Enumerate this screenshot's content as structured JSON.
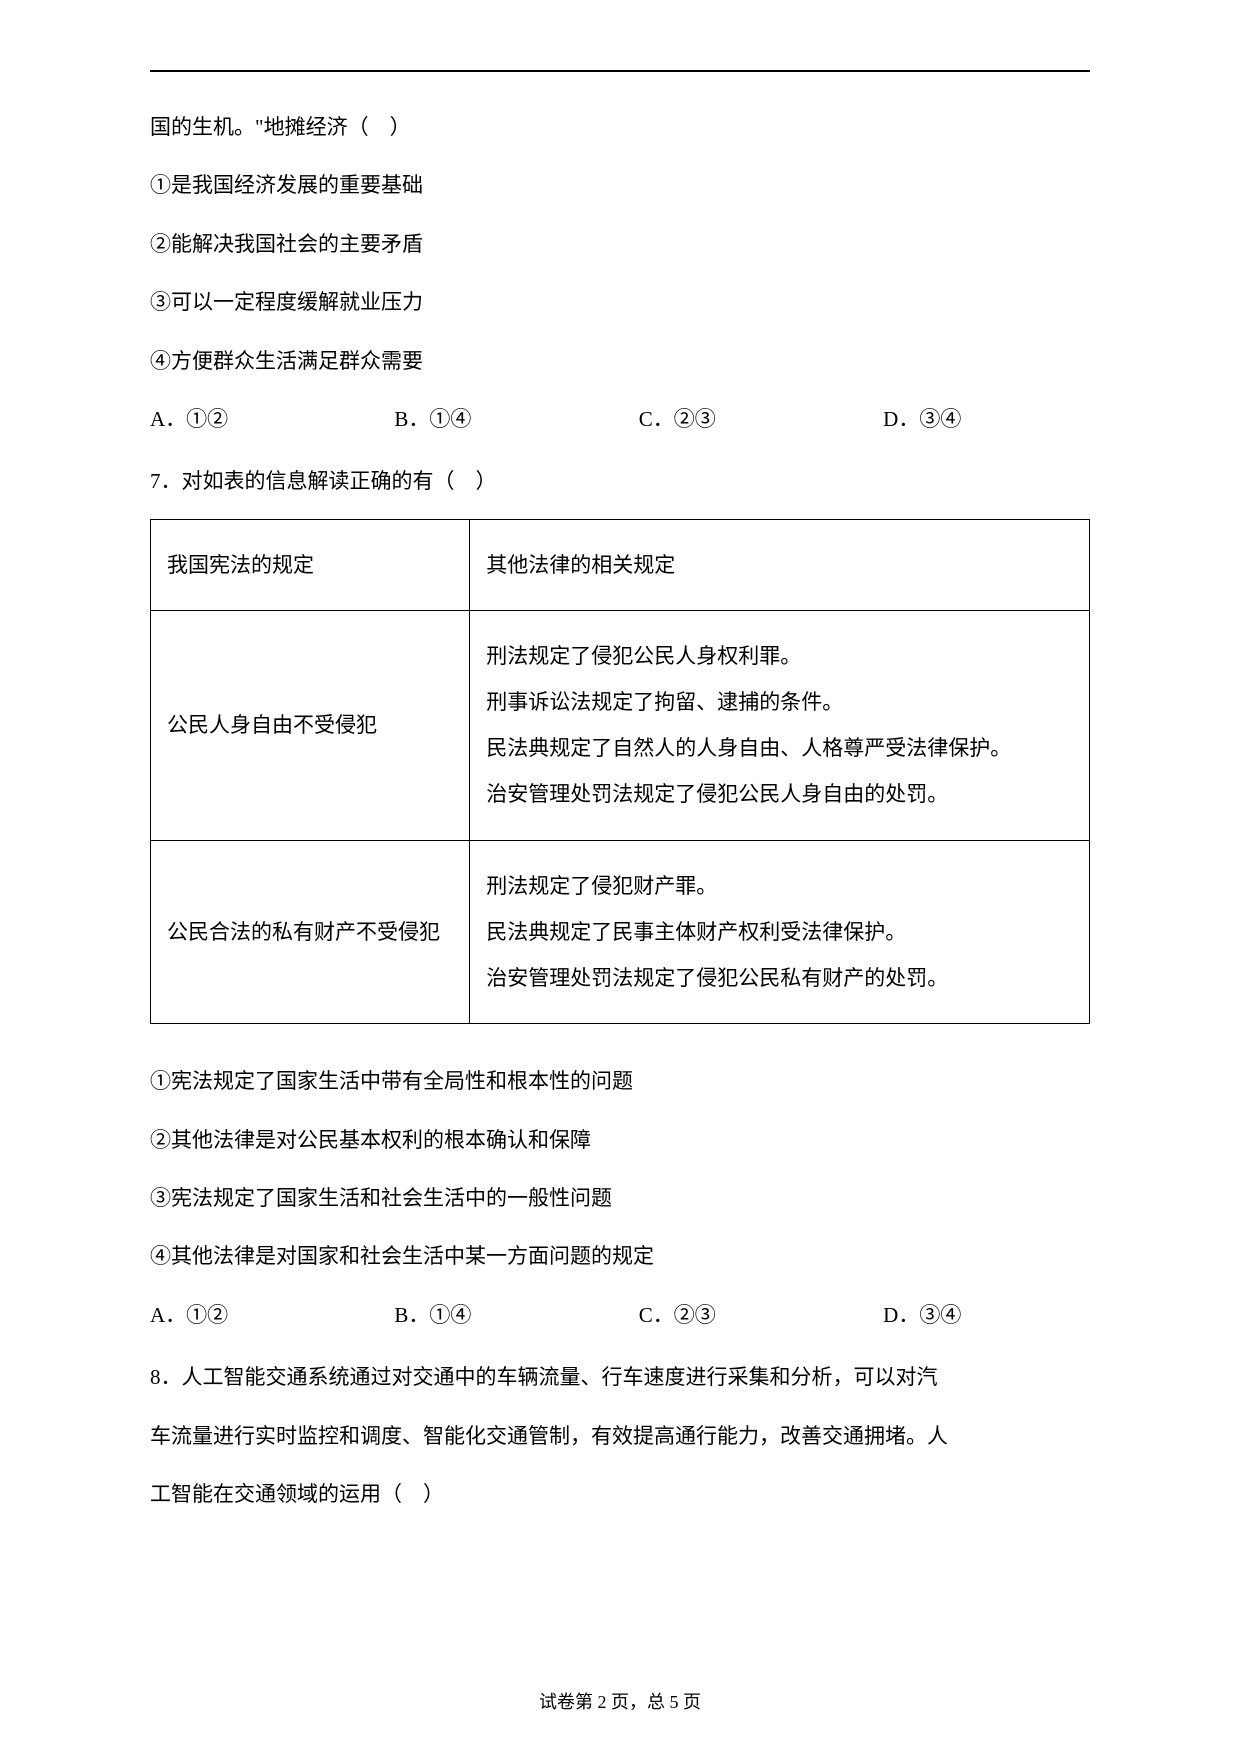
{
  "q6": {
    "tail": "国的生机。\"地摊经济（　）",
    "s1": "①是我国经济发展的重要基础",
    "s2": "②能解决我国社会的主要矛盾",
    "s3": "③可以一定程度缓解就业压力",
    "s4": "④方便群众生活满足群众需要",
    "a": "A．①②",
    "b": "B．①④",
    "c": "C．②③",
    "d": "D．③④"
  },
  "q7": {
    "stem": "7．对如表的信息解读正确的有（　）",
    "th1": "我国宪法的规定",
    "th2": "其他法律的相关规定",
    "r1c1": "公民人身自由不受侵犯",
    "r1l1": "刑法规定了侵犯公民人身权利罪。",
    "r1l2": "刑事诉讼法规定了拘留、逮捕的条件。",
    "r1l3": "民法典规定了自然人的人身自由、人格尊严受法律保护。",
    "r1l4": "治安管理处罚法规定了侵犯公民人身自由的处罚。",
    "r2c1": "公民合法的私有财产不受侵犯",
    "r2l1": "刑法规定了侵犯财产罪。",
    "r2l2": "民法典规定了民事主体财产权利受法律保护。",
    "r2l3": "治安管理处罚法规定了侵犯公民私有财产的处罚。",
    "s1": "①宪法规定了国家生活中带有全局性和根本性的问题",
    "s2": "②其他法律是对公民基本权利的根本确认和保障",
    "s3": "③宪法规定了国家生活和社会生活中的一般性问题",
    "s4": "④其他法律是对国家和社会生活中某一方面问题的规定",
    "a": "A．①②",
    "b": "B．①④",
    "c": "C．②③",
    "d": "D．③④"
  },
  "q8": {
    "l1": "8．人工智能交通系统通过对交通中的车辆流量、行车速度进行采集和分析，可以对汽",
    "l2": "车流量进行实时监控和调度、智能化交通管制，有效提高通行能力，改善交通拥堵。人",
    "l3": "工智能在交通领域的运用（　）"
  },
  "footer": "试卷第 2 页，总 5 页"
}
